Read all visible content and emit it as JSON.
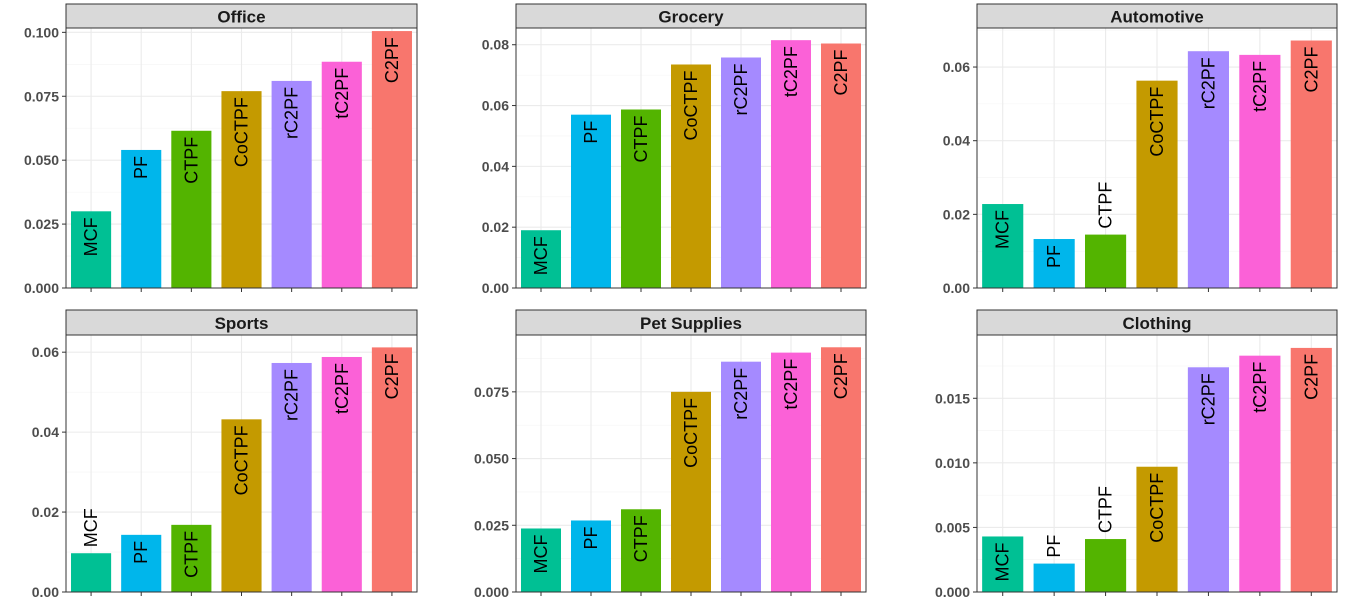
{
  "colors": {
    "MCF": "#00c094",
    "PF": "#00b6eb",
    "CTPF": "#53b400",
    "CoCTPF": "#c49a00",
    "rC2PF": "#a58aff",
    "tC2PF": "#fb61d7",
    "C2PF": "#f8766d"
  },
  "chart_data": [
    {
      "type": "bar",
      "title": "Office",
      "categories": [
        "MCF",
        "PF",
        "CTPF",
        "CoCTPF",
        "rC2PF",
        "tC2PF",
        "C2PF"
      ],
      "values": [
        0.03,
        0.054,
        0.0615,
        0.077,
        0.081,
        0.0885,
        0.1005
      ],
      "yticks": [
        "0.000",
        "0.025",
        "0.050",
        "0.075",
        "0.100"
      ],
      "ylim": [
        0,
        0.1017
      ]
    },
    {
      "type": "bar",
      "title": "Grocery",
      "categories": [
        "MCF",
        "PF",
        "CTPF",
        "CoCTPF",
        "rC2PF",
        "tC2PF",
        "C2PF"
      ],
      "values": [
        0.019,
        0.057,
        0.0587,
        0.0735,
        0.0758,
        0.0815,
        0.0804
      ],
      "yticks": [
        "0.00",
        "0.02",
        "0.04",
        "0.06",
        "0.08"
      ],
      "ylim": [
        0,
        0.0855
      ]
    },
    {
      "type": "bar",
      "title": "Automotive",
      "categories": [
        "MCF",
        "PF",
        "CTPF",
        "CoCTPF",
        "rC2PF",
        "tC2PF",
        "C2PF"
      ],
      "values": [
        0.0228,
        0.0133,
        0.0145,
        0.0563,
        0.0643,
        0.0633,
        0.0672
      ],
      "yticks": [
        "0.00",
        "0.02",
        "0.04",
        "0.06"
      ],
      "ylim": [
        0,
        0.0706
      ]
    },
    {
      "type": "bar",
      "title": "Sports",
      "categories": [
        "MCF",
        "PF",
        "CTPF",
        "CoCTPF",
        "rC2PF",
        "tC2PF",
        "C2PF"
      ],
      "values": [
        0.0097,
        0.0143,
        0.0168,
        0.0432,
        0.0573,
        0.0588,
        0.0612
      ],
      "yticks": [
        "0.00",
        "0.02",
        "0.04",
        "0.06"
      ],
      "ylim": [
        0,
        0.0643
      ]
    },
    {
      "type": "bar",
      "title": "Pet Supplies",
      "categories": [
        "MCF",
        "PF",
        "CTPF",
        "CoCTPF",
        "rC2PF",
        "tC2PF",
        "C2PF"
      ],
      "values": [
        0.0238,
        0.0268,
        0.031,
        0.075,
        0.0863,
        0.0897,
        0.0917
      ],
      "yticks": [
        "0.000",
        "0.025",
        "0.050",
        "0.075"
      ],
      "ylim": [
        0,
        0.0963
      ]
    },
    {
      "type": "bar",
      "title": "Clothing",
      "categories": [
        "MCF",
        "PF",
        "CTPF",
        "CoCTPF",
        "rC2PF",
        "tC2PF",
        "C2PF"
      ],
      "values": [
        0.0043,
        0.0022,
        0.0041,
        0.0097,
        0.0174,
        0.0183,
        0.0189
      ],
      "yticks": [
        "0.000",
        "0.005",
        "0.010",
        "0.015"
      ],
      "ylim": [
        0,
        0.0199
      ]
    }
  ]
}
